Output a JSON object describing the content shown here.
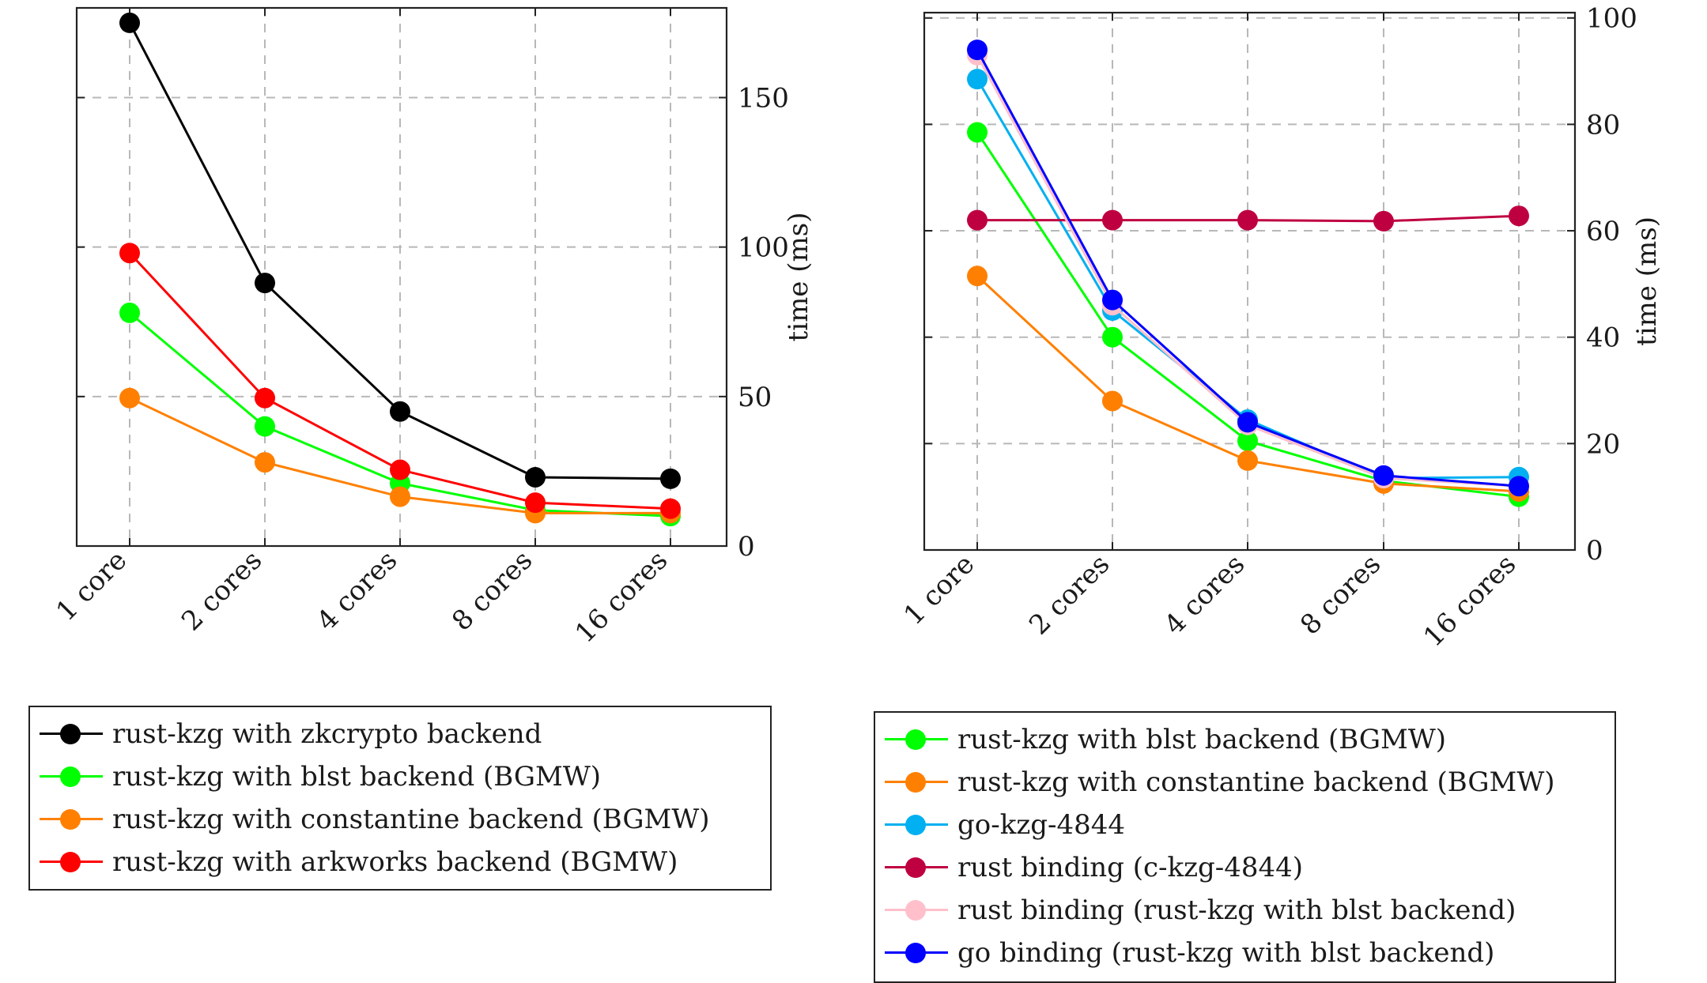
{
  "chart_data": [
    {
      "type": "line",
      "categories": [
        "1 core",
        "2 cores",
        "4 cores",
        "8 cores",
        "16 cores"
      ],
      "ylabel": "time (ms)",
      "ylim": [
        0,
        180
      ],
      "yticks": [
        0,
        50,
        100,
        150
      ],
      "grid": true,
      "legend_position": "below",
      "series": [
        {
          "name": "rust-kzg with zkcrypto backend",
          "color": "#000000",
          "values": [
            175,
            88,
            45,
            23,
            22.5
          ]
        },
        {
          "name": "rust-kzg with blst backend (BGMW)",
          "color": "#00ff00",
          "values": [
            78,
            40,
            21,
            12,
            10
          ]
        },
        {
          "name": "rust-kzg with constantine backend (BGMW)",
          "color": "#ff8000",
          "values": [
            49.5,
            28,
            16.5,
            11,
            11
          ]
        },
        {
          "name": "rust-kzg with arkworks backend (BGMW)",
          "color": "#ff0000",
          "values": [
            98,
            49.5,
            25.5,
            14.5,
            12.5
          ]
        }
      ]
    },
    {
      "type": "line",
      "categories": [
        "1 core",
        "2 cores",
        "4 cores",
        "8 cores",
        "16 cores"
      ],
      "ylabel": "time (ms)",
      "ylim": [
        0,
        101
      ],
      "yticks": [
        0,
        20,
        40,
        60,
        80,
        100
      ],
      "grid": true,
      "legend_position": "below",
      "series": [
        {
          "name": "rust-kzg with blst backend (BGMW)",
          "color": "#00ff00",
          "values": [
            78.5,
            40,
            20.5,
            13,
            10
          ]
        },
        {
          "name": "rust-kzg with constantine backend (BGMW)",
          "color": "#ff8000",
          "values": [
            51.5,
            28,
            16.8,
            12.5,
            11
          ]
        },
        {
          "name": "go-kzg-4844",
          "color": "#00b0f0",
          "values": [
            88.5,
            45,
            24.5,
            13.5,
            13.7
          ]
        },
        {
          "name": "rust binding (c-kzg-4844)",
          "color": "#bf0040",
          "values": [
            62,
            62,
            62,
            61.8,
            62.8
          ]
        },
        {
          "name": "rust binding (rust-kzg with blst backend)",
          "color": "#ffc0cb",
          "values": [
            93,
            46,
            23.5,
            13.5,
            12
          ]
        },
        {
          "name": "go binding (rust-kzg with blst backend)",
          "color": "#0000ff",
          "values": [
            94,
            47,
            24,
            14,
            12
          ]
        }
      ]
    }
  ]
}
